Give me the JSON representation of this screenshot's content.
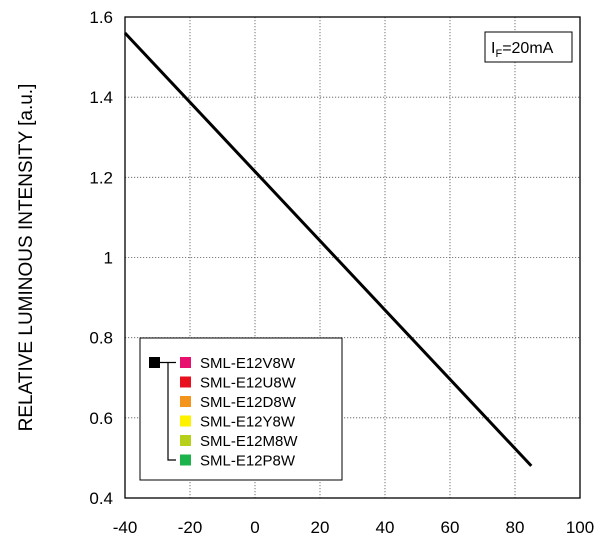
{
  "chart_data": {
    "type": "line",
    "xlabel": "",
    "ylabel": "RELATIVE LUMINOUS INTENSITY [a.u.]",
    "xlim": [
      -40,
      100
    ],
    "ylim": [
      0.4,
      1.6
    ],
    "x_ticks": [
      -40,
      -20,
      0,
      20,
      40,
      60,
      80,
      100
    ],
    "y_ticks": [
      0.4,
      0.6,
      0.8,
      1.0,
      1.2,
      1.4,
      1.6
    ],
    "x_tick_labels": [
      "-40",
      "-20",
      "0",
      "20",
      "40",
      "60",
      "80",
      "100"
    ],
    "y_tick_labels": [
      "0.4",
      "0.6",
      "0.8",
      "1",
      "1.2",
      "1.4",
      "1.6"
    ],
    "grid": true,
    "grid_style": "dotted",
    "series": [
      {
        "color": "#000000",
        "x": [
          -40,
          85
        ],
        "y": [
          1.56,
          0.48
        ]
      }
    ],
    "annotation": {
      "prefix": "I",
      "subscript": "F",
      "suffix": "=20mA"
    },
    "legend": {
      "placement": "bottom-left",
      "marker_color": "#000000",
      "items": [
        {
          "label": "SML-E12V8W",
          "color": "#e8106e"
        },
        {
          "label": "SML-E12U8W",
          "color": "#e8101e"
        },
        {
          "label": "SML-E12D8W",
          "color": "#f3941d"
        },
        {
          "label": "SML-E12Y8W",
          "color": "#fff200"
        },
        {
          "label": "SML-E12M8W",
          "color": "#b5cf1a"
        },
        {
          "label": "SML-E12P8W",
          "color": "#1db34c"
        }
      ]
    }
  }
}
